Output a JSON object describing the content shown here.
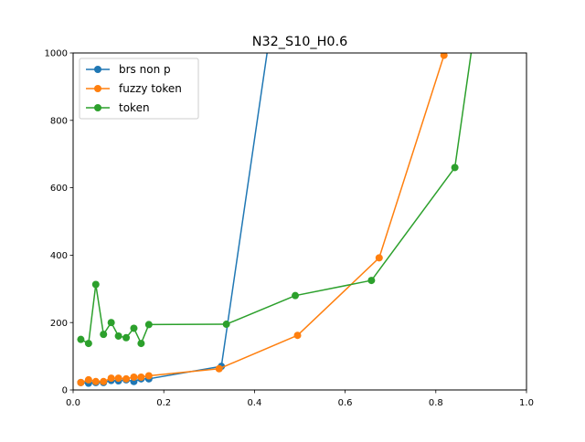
{
  "chart_data": {
    "type": "line",
    "title": "N32_S10_H0.6",
    "xlabel": "",
    "ylabel": "",
    "xlim": [
      0,
      1.0
    ],
    "ylim": [
      0,
      1000
    ],
    "x_ticks": [
      0,
      0.2,
      0.4,
      0.6,
      0.8,
      1.0
    ],
    "x_tick_labels": [
      "0.0",
      "0.2",
      "0.4",
      "0.6",
      "0.8",
      "1.0"
    ],
    "y_ticks": [
      0,
      200,
      400,
      600,
      800,
      1000
    ],
    "y_tick_labels": [
      "0",
      "200",
      "400",
      "600",
      "800",
      "1000"
    ],
    "grid": false,
    "legend_position": "upper-left",
    "series": [
      {
        "name": "brs non p",
        "color": "#1f77b4",
        "points": [
          [
            0.017,
            22
          ],
          [
            0.034,
            20
          ],
          [
            0.05,
            22
          ],
          [
            0.067,
            22
          ],
          [
            0.084,
            28
          ],
          [
            0.1,
            27
          ],
          [
            0.117,
            30
          ],
          [
            0.134,
            25
          ],
          [
            0.15,
            33
          ],
          [
            0.167,
            33
          ],
          [
            0.327,
            70
          ],
          [
            0.43,
            1020
          ]
        ]
      },
      {
        "name": "fuzzy token",
        "color": "#ff7f0e",
        "points": [
          [
            0.017,
            22
          ],
          [
            0.034,
            30
          ],
          [
            0.05,
            25
          ],
          [
            0.067,
            25
          ],
          [
            0.084,
            35
          ],
          [
            0.1,
            35
          ],
          [
            0.117,
            33
          ],
          [
            0.134,
            38
          ],
          [
            0.15,
            38
          ],
          [
            0.167,
            42
          ],
          [
            0.322,
            63
          ],
          [
            0.495,
            162
          ],
          [
            0.675,
            392
          ],
          [
            0.818,
            993
          ],
          [
            0.83,
            1020
          ]
        ]
      },
      {
        "name": "token",
        "color": "#2ca02c",
        "points": [
          [
            0.017,
            150
          ],
          [
            0.034,
            138
          ],
          [
            0.05,
            313
          ],
          [
            0.067,
            165
          ],
          [
            0.084,
            200
          ],
          [
            0.1,
            160
          ],
          [
            0.117,
            155
          ],
          [
            0.134,
            183
          ],
          [
            0.15,
            138
          ],
          [
            0.167,
            194
          ],
          [
            0.338,
            195
          ],
          [
            0.49,
            280
          ],
          [
            0.658,
            325
          ],
          [
            0.842,
            660
          ],
          [
            0.88,
            1020
          ]
        ]
      }
    ]
  }
}
